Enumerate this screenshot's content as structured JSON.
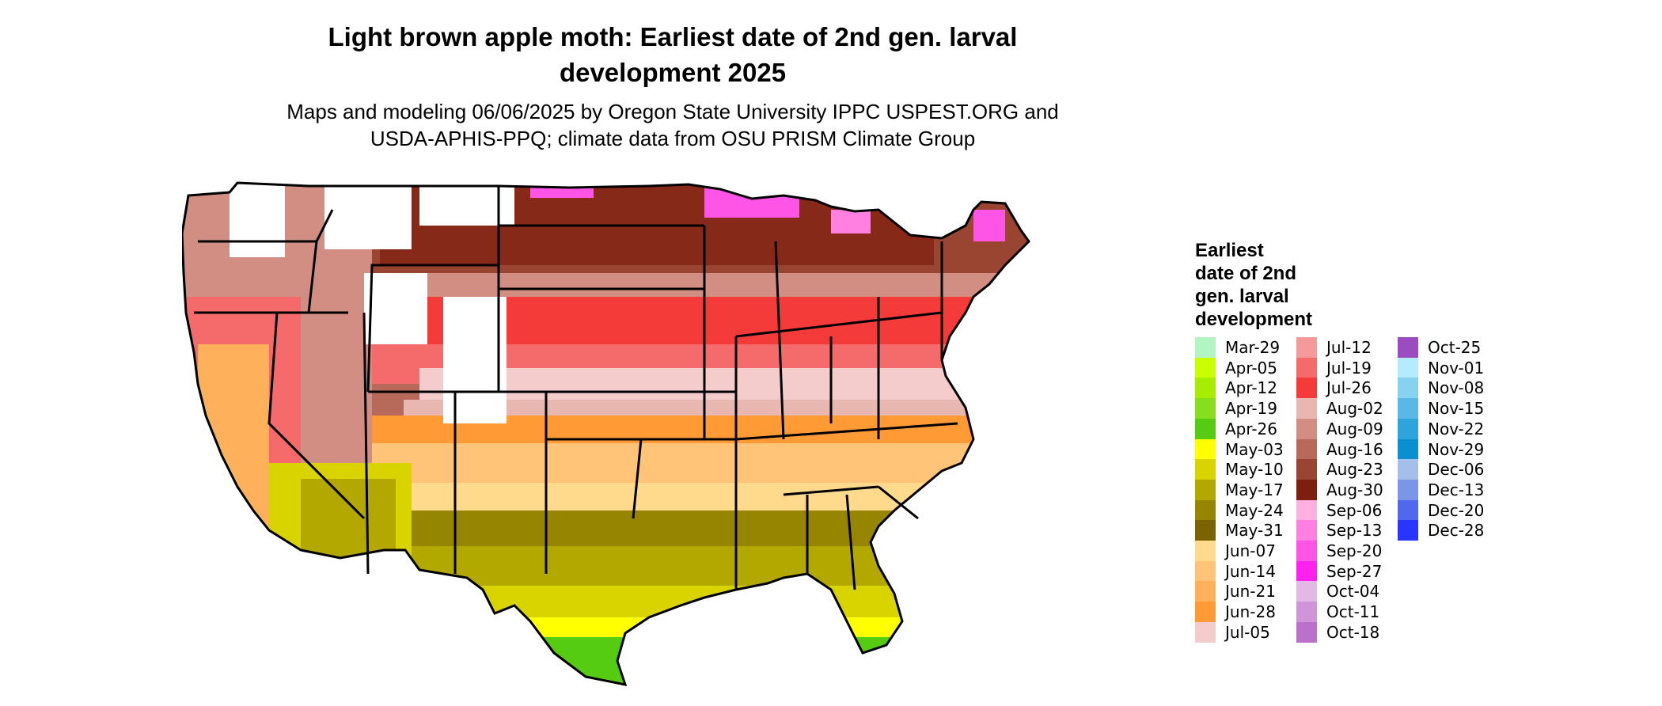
{
  "title": "Light brown apple moth: Earliest date of 2nd gen. larval development 2025",
  "title_line1": "Light brown apple moth: Earliest date of 2nd gen. larval",
  "title_line2": "development 2025",
  "subtitle_line1": "Maps and modeling 06/06/2025 by Oregon State University IPPC USPEST.ORG and",
  "subtitle_line2": "USDA-APHIS-PPQ; climate data from OSU PRISM Climate Group",
  "legend": {
    "title_lines": [
      "Earliest",
      "date of 2nd",
      "gen. larval",
      "development"
    ],
    "columns": [
      [
        {
          "label": "Mar-29",
          "color": "#b3f5c2"
        },
        {
          "label": "Apr-05",
          "color": "#c9ff00"
        },
        {
          "label": "Apr-12",
          "color": "#a8ec00"
        },
        {
          "label": "Apr-19",
          "color": "#86de1c"
        },
        {
          "label": "Apr-26",
          "color": "#55cc11"
        },
        {
          "label": "May-03",
          "color": "#ffff00"
        },
        {
          "label": "May-10",
          "color": "#d9d400"
        },
        {
          "label": "May-17",
          "color": "#b3a800"
        },
        {
          "label": "May-24",
          "color": "#958500"
        },
        {
          "label": "May-31",
          "color": "#7a6300"
        },
        {
          "label": "Jun-07",
          "color": "#ffd98c"
        },
        {
          "label": "Jun-14",
          "color": "#ffc478"
        },
        {
          "label": "Jun-21",
          "color": "#ffb05a"
        },
        {
          "label": "Jun-28",
          "color": "#ff9a35"
        },
        {
          "label": "Jul-05",
          "color": "#f5cccc"
        }
      ],
      [
        {
          "label": "Jul-12",
          "color": "#f59a9a"
        },
        {
          "label": "Jul-19",
          "color": "#f56a6a"
        },
        {
          "label": "Jul-26",
          "color": "#f53a3a"
        },
        {
          "label": "Aug-02",
          "color": "#e8b8b0"
        },
        {
          "label": "Aug-09",
          "color": "#d28e82"
        },
        {
          "label": "Aug-16",
          "color": "#b86a5a"
        },
        {
          "label": "Aug-23",
          "color": "#9a4432"
        },
        {
          "label": "Aug-30",
          "color": "#7d1e0e"
        },
        {
          "label": "Sep-06",
          "color": "#ffb0e0"
        },
        {
          "label": "Sep-13",
          "color": "#ff80e0"
        },
        {
          "label": "Sep-20",
          "color": "#ff55e6"
        },
        {
          "label": "Sep-27",
          "color": "#ff22ee"
        },
        {
          "label": "Oct-04",
          "color": "#e2b8e6"
        },
        {
          "label": "Oct-11",
          "color": "#cf95d8"
        },
        {
          "label": "Oct-18",
          "color": "#bb70cc"
        }
      ],
      [
        {
          "label": "Oct-25",
          "color": "#9b4cc0"
        },
        {
          "label": "Nov-01",
          "color": "#b3ecff"
        },
        {
          "label": "Nov-08",
          "color": "#86d2f0"
        },
        {
          "label": "Nov-15",
          "color": "#5ab8e6"
        },
        {
          "label": "Nov-22",
          "color": "#2ea3dc"
        },
        {
          "label": "Nov-29",
          "color": "#0a8fd0"
        },
        {
          "label": "Dec-06",
          "color": "#a3bfea"
        },
        {
          "label": "Dec-13",
          "color": "#7b96e6"
        },
        {
          "label": "Dec-20",
          "color": "#5068ee"
        },
        {
          "label": "Dec-28",
          "color": "#2a34ff"
        }
      ]
    ]
  }
}
